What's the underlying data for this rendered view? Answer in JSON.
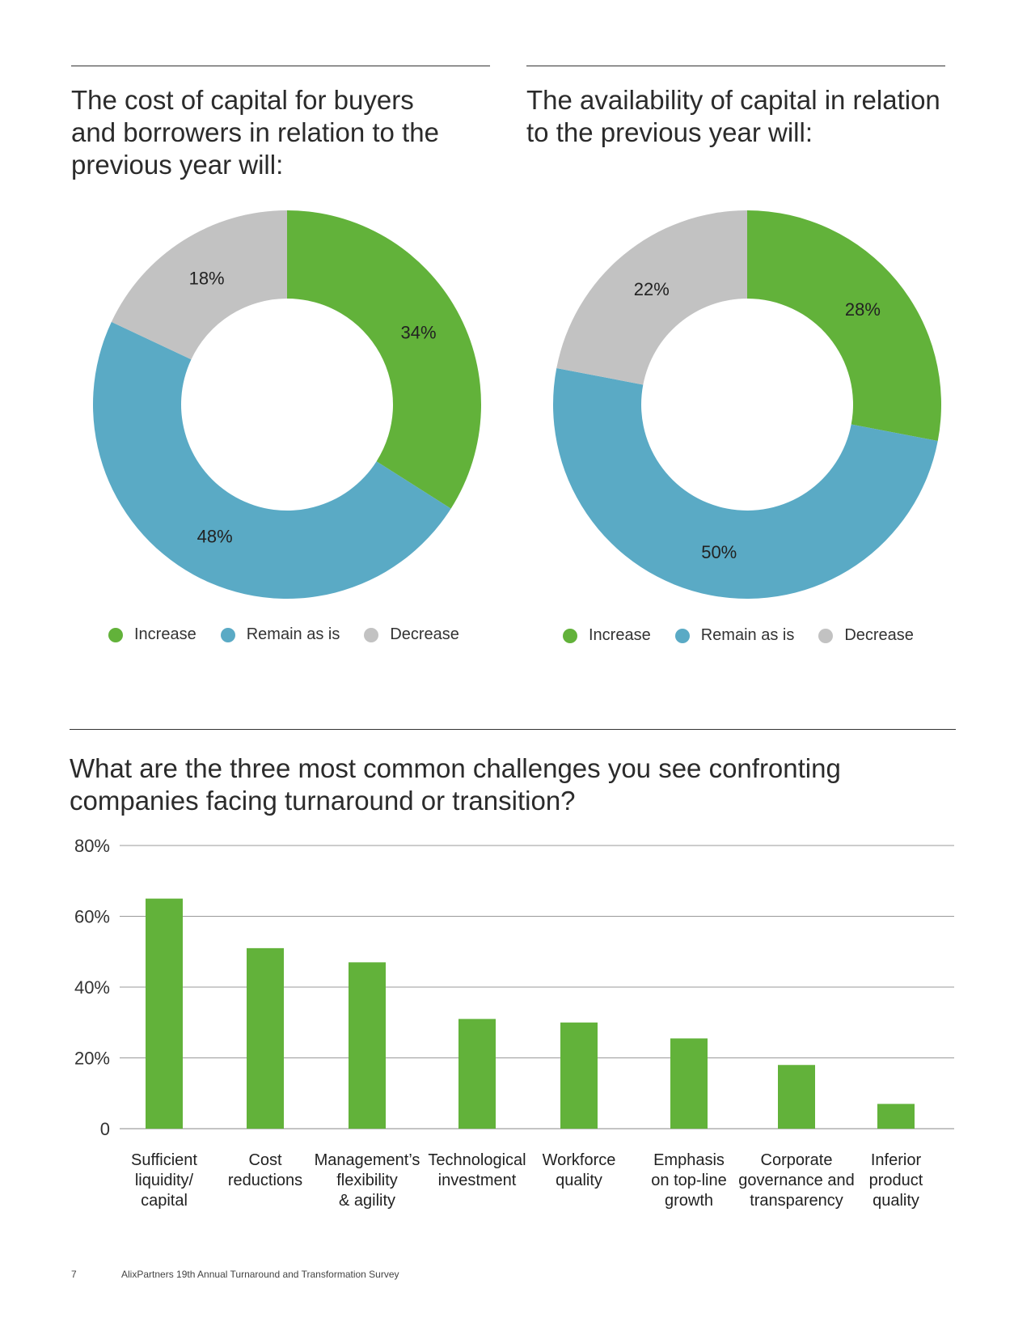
{
  "colors": {
    "increase": "#62b23a",
    "remain": "#5aaac5",
    "decrease": "#c2c2c2",
    "bar": "#62b23a"
  },
  "chart_data": [
    {
      "type": "pie",
      "style": "donut",
      "title": "The cost of capital for buyers\nand borrowers in relation to the\nprevious year will:",
      "categories": [
        "Increase",
        "Remain as is",
        "Decrease"
      ],
      "values": [
        34,
        48,
        18
      ],
      "labels": [
        "34%",
        "48%",
        "18%"
      ],
      "legend": "bottom"
    },
    {
      "type": "pie",
      "style": "donut",
      "title": "The availability of capital in relation\nto the previous year will:",
      "categories": [
        "Increase",
        "Remain as is",
        "Decrease"
      ],
      "values": [
        28,
        50,
        22
      ],
      "labels": [
        "28%",
        "50%",
        "22%"
      ],
      "legend": "bottom"
    },
    {
      "type": "bar",
      "title": "What are the three most common challenges you see confronting\ncompanies facing turnaround or transition?",
      "categories": [
        [
          "Sufficient",
          "liquidity/",
          "capital"
        ],
        [
          "Cost",
          "reductions"
        ],
        [
          "Management’s",
          "flexibility",
          "& agility"
        ],
        [
          "Technological",
          "investment"
        ],
        [
          "Workforce",
          "quality"
        ],
        [
          "Emphasis",
          "on top-line",
          "growth"
        ],
        [
          "Corporate",
          "governance and",
          "transparency"
        ],
        [
          "Inferior",
          "product",
          "quality"
        ]
      ],
      "values": [
        65,
        51,
        47,
        31,
        30,
        25.5,
        18,
        7
      ],
      "yticks": [
        "0",
        "20%",
        "40%",
        "60%",
        "80%"
      ],
      "ylim": [
        0,
        80
      ],
      "grid": true
    }
  ],
  "footer": {
    "page_number": "7",
    "text": "AlixPartners 19th Annual Turnaround and Transformation Survey"
  }
}
